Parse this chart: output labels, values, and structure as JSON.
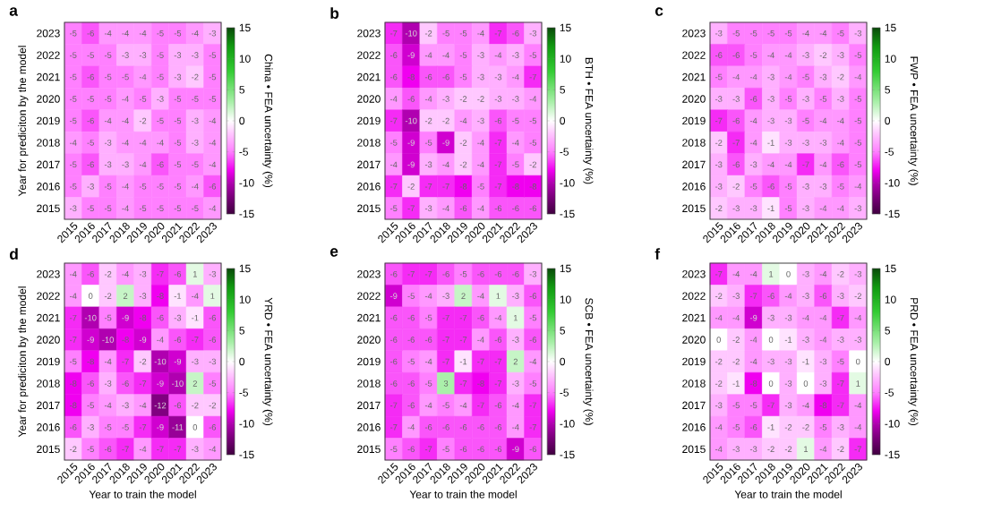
{
  "chart_data": [
    {
      "type": "heatmap",
      "title": "a",
      "ylabel": "Year for prediciton by the model",
      "clabel": "China • FEA uncertainty (%)",
      "categories": [
        "2015",
        "2016",
        "2017",
        "2018",
        "2019",
        "2020",
        "2021",
        "2022",
        "2023"
      ],
      "y_categories": [
        "2023",
        "2022",
        "2021",
        "2020",
        "2019",
        "2018",
        "2017",
        "2016",
        "2015"
      ],
      "clim": [
        -15,
        15
      ],
      "cticks": [
        15,
        10,
        5,
        0,
        -5,
        -10,
        -15
      ],
      "data_labels": true,
      "cells": [
        [
          -5,
          -6,
          -4,
          -4,
          -4,
          -5,
          -5,
          -4,
          -3
        ],
        [
          -5,
          -5,
          -5,
          -3,
          -3,
          -5,
          -3,
          -3,
          -5
        ],
        [
          -5,
          -6,
          -5,
          -5,
          -4,
          -5,
          -3,
          -2,
          -5
        ],
        [
          -5,
          -5,
          -5,
          -4,
          -5,
          -3,
          -5,
          -5,
          -5
        ],
        [
          -5,
          -6,
          -4,
          -4,
          -2,
          -5,
          -5,
          -3,
          -4
        ],
        [
          -4,
          -5,
          -3,
          -4,
          -4,
          -4,
          -5,
          -3,
          -4
        ],
        [
          -5,
          -6,
          -3,
          -3,
          -4,
          -6,
          -5,
          -5,
          -4
        ],
        [
          -5,
          -3,
          -5,
          -4,
          -5,
          -5,
          -5,
          -4,
          -6
        ],
        [
          -3,
          -5,
          -5,
          -4,
          -5,
          -5,
          -5,
          -5,
          -4
        ]
      ]
    },
    {
      "type": "heatmap",
      "title": "b",
      "clabel": "BTH • FEA uncertainty (%)",
      "categories": [
        "2015",
        "2016",
        "2017",
        "2018",
        "2019",
        "2020",
        "2021",
        "2022",
        "2023"
      ],
      "y_categories": [
        "2023",
        "2022",
        "2021",
        "2020",
        "2019",
        "2018",
        "2017",
        "2016",
        "2015"
      ],
      "clim": [
        -15,
        15
      ],
      "cticks": [
        15,
        10,
        5,
        0,
        -5,
        -10,
        -15
      ],
      "data_labels": true,
      "cells": [
        [
          -7,
          -10,
          -2,
          -5,
          -5,
          -4,
          -7,
          -6,
          -3
        ],
        [
          -6,
          -9,
          -4,
          -4,
          -5,
          -3,
          -4,
          -3,
          -5
        ],
        [
          -6,
          -8,
          -6,
          -6,
          -5,
          -3,
          -3,
          -4,
          -7
        ],
        [
          -4,
          -6,
          -4,
          -3,
          -2,
          -2,
          -3,
          -3,
          -4
        ],
        [
          -7,
          -10,
          -2,
          -2,
          -4,
          -3,
          -6,
          -5,
          -5
        ],
        [
          -5,
          -9,
          -5,
          -9,
          -2,
          -4,
          -7,
          -4,
          -5
        ],
        [
          -4,
          -9,
          -3,
          -4,
          -2,
          -4,
          -7,
          -5,
          -2
        ],
        [
          -7,
          -2,
          -7,
          -7,
          -8,
          -5,
          -7,
          -8,
          -8
        ],
        [
          -5,
          -7,
          -3,
          -4,
          -6,
          -4,
          -6,
          -6,
          -6
        ]
      ]
    },
    {
      "type": "heatmap",
      "title": "c",
      "clabel": "FWP • FEA uncertainty (%)",
      "categories": [
        "2015",
        "2016",
        "2017",
        "2018",
        "2019",
        "2020",
        "2021",
        "2022",
        "2023"
      ],
      "y_categories": [
        "2023",
        "2022",
        "2021",
        "2020",
        "2019",
        "2018",
        "2017",
        "2016",
        "2015"
      ],
      "clim": [
        -15,
        15
      ],
      "cticks": [
        15,
        10,
        5,
        0,
        -5,
        -10,
        -15
      ],
      "data_labels": true,
      "cells": [
        [
          -3,
          -5,
          -5,
          -5,
          -5,
          -4,
          -4,
          -5,
          -3
        ],
        [
          -6,
          -6,
          -5,
          -4,
          -4,
          -3,
          -2,
          -3,
          -5
        ],
        [
          -5,
          -4,
          -4,
          -3,
          -4,
          -5,
          -3,
          -2,
          -4
        ],
        [
          -3,
          -3,
          -6,
          -3,
          -5,
          -3,
          -5,
          -3,
          -5
        ],
        [
          -7,
          -6,
          -4,
          -3,
          -3,
          -5,
          -4,
          -4,
          -5
        ],
        [
          -2,
          -7,
          -4,
          -1,
          -3,
          -3,
          -3,
          -4,
          -5
        ],
        [
          -3,
          -6,
          -3,
          -4,
          -4,
          -7,
          -4,
          -6,
          -5
        ],
        [
          -3,
          -2,
          -5,
          -6,
          -5,
          -3,
          -3,
          -5,
          -4
        ],
        [
          -2,
          -3,
          -3,
          -1,
          -5,
          -3,
          -4,
          -4,
          -3
        ]
      ]
    },
    {
      "type": "heatmap",
      "title": "d",
      "xlabel": "Year to train the model",
      "ylabel": "Year for prediciton by the model",
      "clabel": "YRD • FEA uncertainty (%)",
      "categories": [
        "2015",
        "2016",
        "2017",
        "2018",
        "2019",
        "2020",
        "2021",
        "2022",
        "2023"
      ],
      "y_categories": [
        "2023",
        "2022",
        "2021",
        "2020",
        "2019",
        "2018",
        "2017",
        "2016",
        "2015"
      ],
      "clim": [
        -15,
        15
      ],
      "cticks": [
        15,
        10,
        5,
        0,
        -5,
        -10,
        -15
      ],
      "data_labels": true,
      "cells": [
        [
          -4,
          -6,
          -2,
          -4,
          -3,
          -7,
          -6,
          1,
          -3
        ],
        [
          -4,
          0,
          -2,
          2,
          -3,
          -8,
          -1,
          -4,
          1
        ],
        [
          -7,
          -10,
          -5,
          -9,
          -8,
          -6,
          -3,
          -1,
          -6
        ],
        [
          -7,
          -9,
          -10,
          -8,
          -9,
          -4,
          -6,
          -7,
          -6
        ],
        [
          -5,
          -8,
          -4,
          -7,
          -2,
          -10,
          -9,
          -3,
          -3
        ],
        [
          -8,
          -6,
          -3,
          -6,
          -7,
          -9,
          -10,
          2,
          -5
        ],
        [
          -8,
          -5,
          -4,
          -3,
          -4,
          -12,
          -6,
          -2,
          -2
        ],
        [
          -6,
          -3,
          -5,
          -5,
          -7,
          -9,
          -11,
          0,
          -6
        ],
        [
          -2,
          -5,
          -6,
          -7,
          -4,
          -7,
          -7,
          -3,
          -4
        ]
      ]
    },
    {
      "type": "heatmap",
      "title": "e",
      "xlabel": "Year to train the model",
      "clabel": "SCB • FEA uncertainty (%)",
      "categories": [
        "2015",
        "2016",
        "2017",
        "2018",
        "2019",
        "2020",
        "2021",
        "2022",
        "2023"
      ],
      "y_categories": [
        "2023",
        "2022",
        "2021",
        "2020",
        "2019",
        "2018",
        "2017",
        "2016",
        "2015"
      ],
      "clim": [
        -15,
        15
      ],
      "cticks": [
        15,
        10,
        5,
        0,
        -5,
        -10,
        -15
      ],
      "data_labels": true,
      "cells": [
        [
          -6,
          -7,
          -7,
          -6,
          -5,
          -6,
          -6,
          -6,
          -3
        ],
        [
          -9,
          -5,
          -4,
          -3,
          2,
          -4,
          1,
          -3,
          -6
        ],
        [
          -6,
          -6,
          -5,
          -7,
          -7,
          -6,
          -4,
          1,
          -5
        ],
        [
          -6,
          -6,
          -6,
          -7,
          -7,
          -4,
          -6,
          -3,
          -6
        ],
        [
          -6,
          -5,
          -4,
          -7,
          -1,
          -7,
          -7,
          2,
          -4
        ],
        [
          -6,
          -6,
          -5,
          3,
          -7,
          -8,
          -7,
          -3,
          -5
        ],
        [
          -7,
          -6,
          -4,
          -5,
          -4,
          -7,
          -6,
          -4,
          -7
        ],
        [
          -7,
          -4,
          -6,
          -6,
          -6,
          -6,
          -6,
          -4,
          -7
        ],
        [
          -5,
          -6,
          -7,
          -5,
          -6,
          -6,
          -6,
          -9,
          -6
        ]
      ]
    },
    {
      "type": "heatmap",
      "title": "f",
      "xlabel": "Year to train the model",
      "clabel": "PRD • FEA uncertainty (%)",
      "categories": [
        "2015",
        "2016",
        "2017",
        "2018",
        "2019",
        "2020",
        "2021",
        "2022",
        "2023"
      ],
      "y_categories": [
        "2023",
        "2022",
        "2021",
        "2020",
        "2019",
        "2018",
        "2017",
        "2016",
        "2015"
      ],
      "clim": [
        -15,
        15
      ],
      "cticks": [
        15,
        10,
        5,
        0,
        -5,
        -10,
        -15
      ],
      "data_labels": true,
      "cells": [
        [
          -7,
          -4,
          -4,
          1,
          0,
          -3,
          -4,
          -2,
          -3
        ],
        [
          -2,
          -3,
          -7,
          -6,
          -4,
          -3,
          -6,
          -3,
          -2
        ],
        [
          -4,
          -4,
          -9,
          -3,
          -3,
          -4,
          -4,
          -7,
          -4
        ],
        [
          0,
          -2,
          -4,
          0,
          -1,
          -3,
          -4,
          -3,
          -3
        ],
        [
          -2,
          -2,
          -4,
          -3,
          -3,
          -1,
          -3,
          -5,
          0
        ],
        [
          -2,
          -1,
          -8,
          0,
          -3,
          0,
          -3,
          -7,
          1
        ],
        [
          -3,
          -5,
          -5,
          -7,
          -3,
          -4,
          -8,
          -7,
          -4
        ],
        [
          -4,
          -5,
          -6,
          -1,
          -2,
          -2,
          -5,
          -3,
          -4
        ],
        [
          -4,
          -3,
          -3,
          -2,
          -2,
          1,
          -4,
          -2,
          -7
        ]
      ]
    }
  ]
}
